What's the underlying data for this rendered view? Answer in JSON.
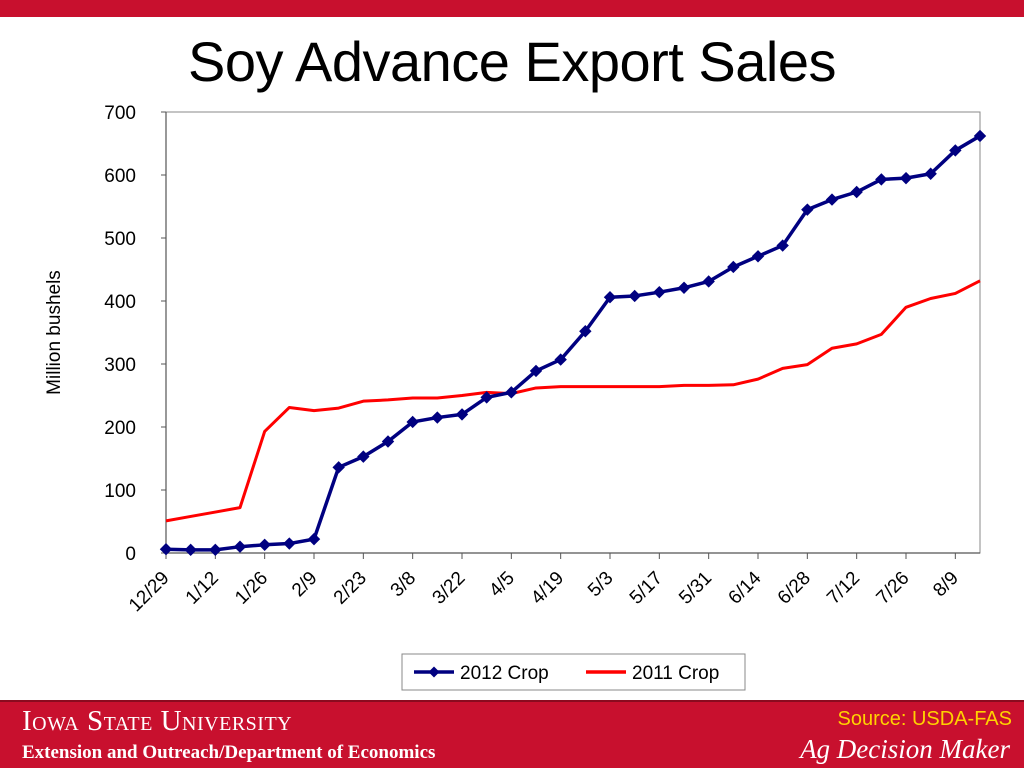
{
  "slide": {
    "title": "Soy Advance Export Sales",
    "footer": {
      "university": "Iowa State University",
      "department": "Extension and Outreach/Department of Economics",
      "source": "Source: USDA-FAS",
      "brand": "Ag Decision Maker"
    },
    "colors": {
      "brand_red": "#c8102e",
      "source_text": "#ffd200"
    }
  },
  "chart_data": {
    "type": "line",
    "title": "",
    "xlabel": "",
    "ylabel": "Million bushels",
    "ylim": [
      0,
      700
    ],
    "yticks": [
      0,
      100,
      200,
      300,
      400,
      500,
      600,
      700
    ],
    "grid": true,
    "legend_position": "bottom",
    "x_tick_labels": [
      "12/29",
      "1/12",
      "1/26",
      "2/9",
      "2/23",
      "3/8",
      "3/22",
      "4/5",
      "4/19",
      "5/3",
      "5/17",
      "5/31",
      "6/14",
      "6/28",
      "7/12",
      "7/26",
      "8/9"
    ],
    "series": [
      {
        "name": "2012 Crop",
        "color": "#000080",
        "marker": "diamond",
        "values": [
          6,
          5,
          5,
          10,
          13,
          15,
          22,
          136,
          153,
          177,
          208,
          215,
          220,
          247,
          255,
          289,
          307,
          352,
          406,
          408,
          414,
          421,
          431,
          454,
          471,
          488,
          545,
          561,
          573,
          593,
          595,
          602,
          639,
          662
        ]
      },
      {
        "name": "2011 Crop",
        "color": "#ff0000",
        "marker": "none",
        "values": [
          51,
          58,
          65,
          72,
          193,
          231,
          226,
          230,
          241,
          243,
          246,
          246,
          250,
          255,
          253,
          262,
          264,
          264,
          264,
          264,
          264,
          266,
          266,
          267,
          276,
          293,
          299,
          325,
          332,
          347,
          390,
          404,
          412,
          432
        ]
      }
    ]
  }
}
